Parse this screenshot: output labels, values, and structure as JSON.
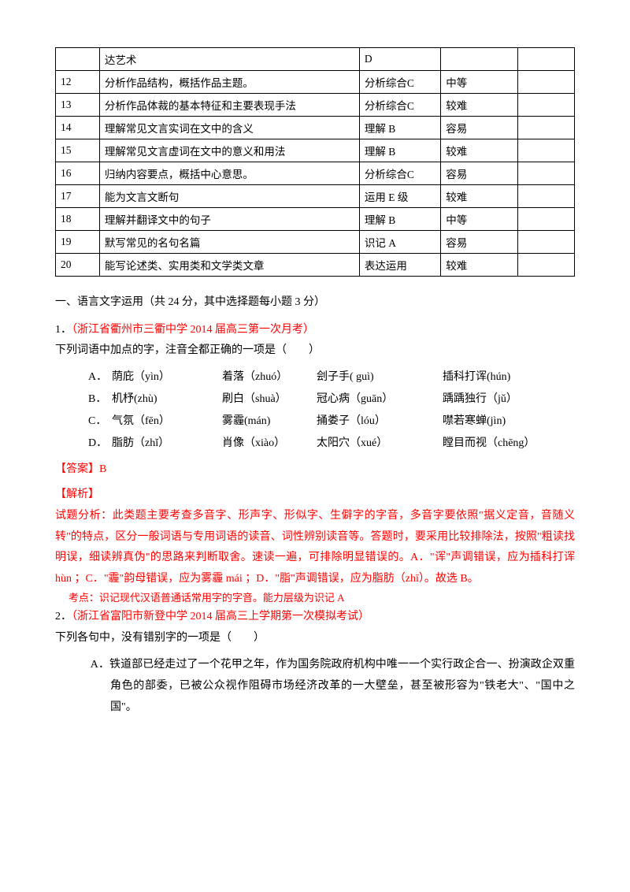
{
  "table": {
    "rows": [
      {
        "num": "",
        "content": "达艺术",
        "level": "D",
        "difficulty": "",
        "blank": ""
      },
      {
        "num": "12",
        "content": "分析作品结构，概括作品主题。",
        "level": "分析综合C",
        "difficulty": "中等",
        "blank": ""
      },
      {
        "num": "13",
        "content": "分析作品体裁的基本特征和主要表现手法",
        "level": "分析综合C",
        "difficulty": "较难",
        "blank": ""
      },
      {
        "num": "14",
        "content": "理解常见文言实词在文中的含义",
        "level": "理解 B",
        "difficulty": "容易",
        "blank": ""
      },
      {
        "num": "15",
        "content": "理解常见文言虚词在文中的意义和用法",
        "level": "理解 B",
        "difficulty": "较难",
        "blank": ""
      },
      {
        "num": "16",
        "content": "归纳内容要点，概括中心意思。",
        "level": "分析综合C",
        "difficulty": "容易",
        "blank": ""
      },
      {
        "num": "17",
        "content": "能为文言文断句",
        "level": "运用 E 级",
        "difficulty": "较难",
        "blank": ""
      },
      {
        "num": "18",
        "content": "理解并翻译文中的句子",
        "level": "理解 B",
        "difficulty": "中等",
        "blank": ""
      },
      {
        "num": "19",
        "content": "默写常见的名句名篇",
        "level": "识记 A",
        "difficulty": "容易",
        "blank": ""
      },
      {
        "num": "20",
        "content": "能写论述类、实用类和文学类文章",
        "level": "表达运用",
        "difficulty": "较难",
        "blank": ""
      }
    ]
  },
  "section1": {
    "heading": "一、语言文字运用（共 24 分，其中选择题每小题 3 分）",
    "q1": {
      "prefix": "1．",
      "source": "（浙江省衢州市三衢中学 2014 届高三第一次月考）",
      "stem": "下列词语中加点的字，注音全都正确的一项是（　　）",
      "options": [
        {
          "label": "A．",
          "a": "荫庇（yìn）",
          "b": "着落（zhuó）",
          "c": "刽子手( guì)",
          "d": "插科打诨(hún)"
        },
        {
          "label": "B．",
          "a": "机杼(zhù)",
          "b": "刷白（shuà）",
          "c": "冠心病（guān）",
          "d": "踽踽独行（jǔ）"
        },
        {
          "label": "C．",
          "a": "气氛（fēn）",
          "b": "雾霾(mán)",
          "c": "捅娄子（lóu）",
          "d": "噤若寒蝉(jìn)"
        },
        {
          "label": "D．",
          "a": "脂肪（zhǐ）",
          "b": "肖像（xiào）",
          "c": "太阳穴（xué）",
          "d": "瞠目而视（chēng）"
        }
      ],
      "answer_label": "【答案】",
      "answer": "B",
      "jiexi_label": "【解析】",
      "analysis": "试题分析：此类题主要考查多音字、形声字、形似字、生僻字的字音，多音字要依照\"据义定音，音随义转\"的特点，区分一般词语与专用词语的读音、词性辨别读音等。答题时，要采用比较排除法，按照\"粗读找明误，细读辨真伪\"的思路来判断取舍。速读一遍，可排除明显错误的。A．\"诨\"声调错误，应为插科打诨 hùn ；C．\"霾\"韵母错误，应为雾霾 mái ；D．\"脂\"声调错误，应为脂肪（zhī）。故选 B。",
      "kaodian": "考点：识记现代汉语普通话常用字的字音。能力层级为识记 A"
    },
    "q2": {
      "prefix": "2．",
      "source": "（浙江省富阳市新登中学 2014 届高三上学期第一次模拟考试）",
      "stem": "下列各句中，没有错别字的一项是（　　）",
      "optA": "A．铁道部已经走过了一个花甲之年，作为国务院政府机构中唯一一个实行政企合一、扮演政企双重角色的部委，已被公众视作阻碍市场经济改革的一大壁垒，甚至被形容为\"铁老大\"、\"国中之国\"。"
    }
  }
}
